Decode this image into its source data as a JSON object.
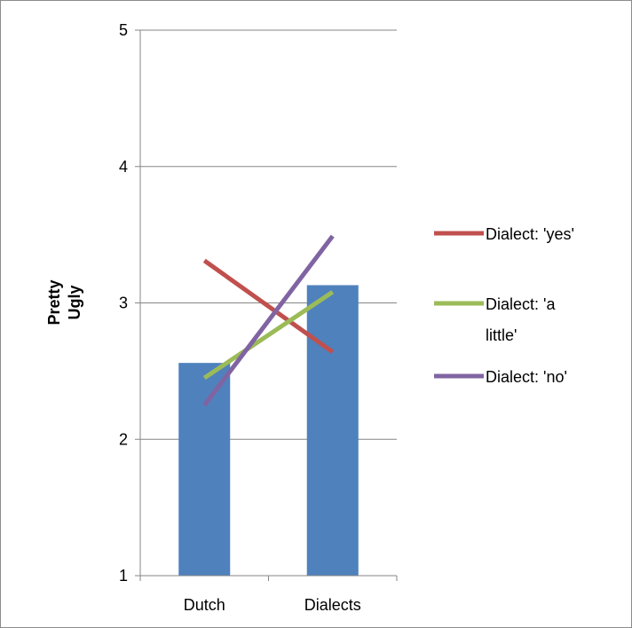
{
  "chart_data": {
    "type": "bar",
    "title": "",
    "xlabel": "",
    "ylabel": "Pretty Ugly",
    "ylabel_lines": [
      "Pretty",
      "Ugly"
    ],
    "ylim": [
      1,
      5
    ],
    "yticks": [
      1,
      2,
      3,
      4,
      5
    ],
    "ytick_labels": [
      "1",
      "2",
      "3",
      "4",
      "5"
    ],
    "categories": [
      "Dutch",
      "Dialects"
    ],
    "grid": true,
    "legend_position": "right",
    "bars": {
      "values": [
        2.56,
        3.13
      ],
      "color": "#4f81bd"
    },
    "series": [
      {
        "name": "Dialect: 'yes'",
        "name_lines": [
          "Dialect: 'yes'"
        ],
        "type": "line",
        "values": [
          3.31,
          2.64
        ],
        "color": "#c0504d"
      },
      {
        "name": "Dialect: 'a little'",
        "name_lines": [
          "Dialect: 'a",
          "little'"
        ],
        "type": "line",
        "values": [
          2.45,
          3.08
        ],
        "color": "#9bbb59"
      },
      {
        "name": "Dialect: 'no'",
        "name_lines": [
          "Dialect: 'no'"
        ],
        "type": "line",
        "values": [
          2.25,
          3.49
        ],
        "color": "#8064a2"
      }
    ]
  }
}
